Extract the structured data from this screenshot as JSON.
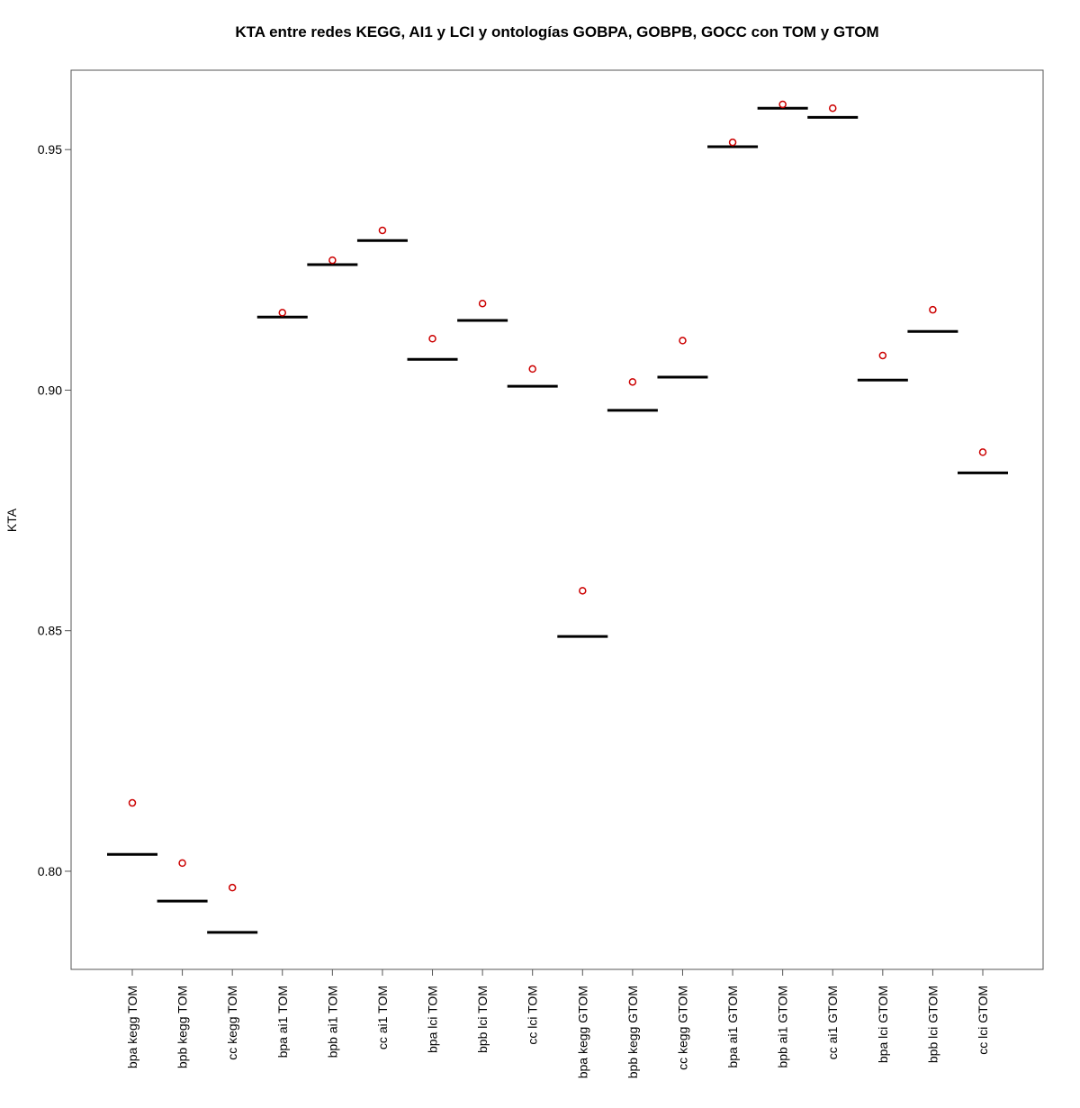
{
  "chart_data": {
    "type": "box",
    "title": "KTA entre redes KEGG, AI1 y LCI y ontologías GOBPA, GOBPB, GOCC con TOM y GTOM",
    "y_label": "KTA",
    "categories": [
      "bpa kegg TOM",
      "bpb kegg TOM",
      "cc kegg TOM",
      "bpa ai1 TOM",
      "bpb ai1 TOM",
      "cc ai1 TOM",
      "bpa lci TOM",
      "bpb lci TOM",
      "cc lci TOM",
      "bpa kegg GTOM",
      "bpb kegg GTOM",
      "cc kegg GTOM",
      "bpa ai1 GTOM",
      "bpb ai1 GTOM",
      "cc ai1 GTOM",
      "bpa lci GTOM",
      "bpb lci GTOM",
      "cc lci GTOM"
    ],
    "medians": [
      0.8035,
      0.7938,
      0.7873,
      0.9152,
      0.9261,
      0.9311,
      0.9064,
      0.9145,
      0.9008,
      0.8488,
      0.8958,
      0.9027,
      0.9506,
      0.9586,
      0.9567,
      0.9021,
      0.9122,
      0.8828
    ],
    "highlights": [
      0.8142,
      0.8017,
      0.7966,
      0.9161,
      0.927,
      0.9332,
      0.9107,
      0.918,
      0.9044,
      0.8583,
      0.9017,
      0.9103,
      0.9515,
      0.9594,
      0.9586,
      0.9072,
      0.9167,
      0.8871
    ],
    "median_color": "#000000",
    "highlight_color": "#cc0000",
    "ylim": [
      0.7796,
      0.9665
    ],
    "yticks": [
      {
        "value": 0.8,
        "label": "0.80"
      },
      {
        "value": 0.85,
        "label": "0.85"
      },
      {
        "value": 0.9,
        "label": "0.90"
      },
      {
        "value": 0.95,
        "label": "0.95"
      }
    ]
  }
}
